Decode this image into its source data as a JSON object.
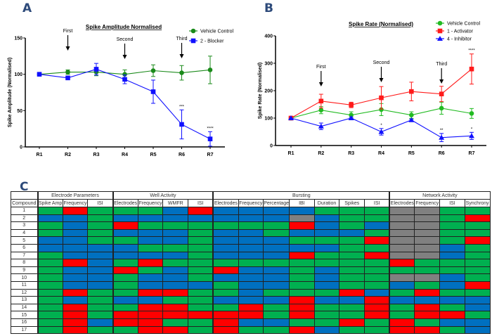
{
  "panels": {
    "a": "A",
    "b": "B",
    "c": "C"
  },
  "colors": {
    "G": "#00b050",
    "R": "#ff0000",
    "B": "#0070c0",
    "X": "#808080"
  },
  "chart_data": [
    {
      "type": "line",
      "title": "Spike Amplitude Normalised",
      "xlabel": "",
      "ylabel": "Spike Amplitude (Normalised)",
      "categories": [
        "R1",
        "R2",
        "R3",
        "R4",
        "R5",
        "R6",
        "R7"
      ],
      "ylim": [
        0,
        150
      ],
      "yticks": [
        0,
        50,
        100,
        150
      ],
      "grid": false,
      "legend": "top-right",
      "series": [
        {
          "name": "Vehicle Control",
          "color": "#1a8a1a",
          "marker": "circle",
          "values": [
            100,
            103,
            103,
            100,
            105,
            102,
            106
          ],
          "errors": [
            0,
            3,
            5,
            6,
            8,
            10,
            19
          ]
        },
        {
          "name": "2 - Blocker",
          "color": "#1010ff",
          "marker": "square",
          "values": [
            100,
            95,
            107,
            93,
            76,
            31,
            11
          ],
          "errors": [
            0,
            2,
            8,
            6,
            16,
            20,
            10
          ]
        }
      ],
      "events": [
        {
          "label": "First",
          "at": "R2"
        },
        {
          "label": "Second",
          "at": "R4"
        },
        {
          "label": "Third",
          "at": "R6"
        }
      ],
      "annotations": [
        {
          "text": "***",
          "at": "R6",
          "series": 1
        },
        {
          "text": "****",
          "at": "R7",
          "series": 1
        }
      ]
    },
    {
      "type": "line",
      "title": "Spike Rate (Normalised)",
      "xlabel": "",
      "ylabel": "Spike Rate (Normalised)",
      "categories": [
        "R1",
        "R2",
        "R3",
        "R4",
        "R5",
        "R6",
        "R7"
      ],
      "ylim": [
        0,
        400
      ],
      "yticks": [
        0,
        100,
        200,
        300,
        400
      ],
      "grid": false,
      "legend": "top-right",
      "series": [
        {
          "name": "Vehicle Control",
          "color": "#22bb22",
          "marker": "circle",
          "values": [
            100,
            129,
            111,
            131,
            111,
            136,
            117
          ],
          "errors": [
            0,
            13,
            12,
            22,
            12,
            22,
            18
          ]
        },
        {
          "name": "1 - Activator",
          "color": "#ff1a1a",
          "marker": "square",
          "values": [
            100,
            162,
            148,
            174,
            197,
            188,
            279
          ],
          "errors": [
            0,
            25,
            10,
            41,
            34,
            28,
            55
          ]
        },
        {
          "name": "4 - Inhibitor",
          "color": "#1010ff",
          "marker": "triangle",
          "values": [
            100,
            70,
            100,
            50,
            93,
            29,
            35
          ],
          "errors": [
            0,
            12,
            3,
            12,
            3,
            15,
            13
          ]
        }
      ],
      "events": [
        {
          "label": "First",
          "at": "R2"
        },
        {
          "label": "Second",
          "at": "R4"
        },
        {
          "label": "Third",
          "at": "R6"
        }
      ],
      "annotations": [
        {
          "text": "*",
          "at": "R4",
          "series": 2
        },
        {
          "text": "**",
          "at": "R6",
          "series": 2
        },
        {
          "text": "*",
          "at": "R7",
          "series": 2
        },
        {
          "text": "****",
          "at": "R7",
          "series": 1
        }
      ]
    },
    {
      "type": "heatmap",
      "groups": [
        {
          "label": "Electrode Parameters",
          "span": 3
        },
        {
          "label": "Well Activity",
          "span": 4
        },
        {
          "label": "Bursting",
          "span": 7
        },
        {
          "label": "Network Activity",
          "span": 4
        }
      ],
      "row_header": "Compound",
      "columns": [
        "Spike Amp",
        "Frequency",
        "ISI",
        "Electrodes",
        "Frequency",
        "WMFR",
        "ISI",
        "Electrodes",
        "Frequency",
        "Percentage",
        "IBI",
        "Duration",
        "Spikes",
        "ISI",
        "Electrodes",
        "Frequency",
        "ISI",
        "Synchrony"
      ],
      "rows": [
        {
          "label": "1",
          "cells": "GRGGGBRBBBBGGGXXGG"
        },
        {
          "label": "2",
          "cells": "BBGBBBBBBBXBGGXXGR"
        },
        {
          "label": "3",
          "cells": "GBGRGGGGGGRBGBXXGG"
        },
        {
          "label": "4",
          "cells": "GBGBBBGBBGBBBGXXGG"
        },
        {
          "label": "5",
          "cells": "BBGGBBGBBBGGGRXXGR"
        },
        {
          "label": "6",
          "cells": "BBBBGGGBBBBBGGXXBG"
        },
        {
          "label": "7",
          "cells": "GBBBBBGBBBRGGRXXBG"
        },
        {
          "label": "8",
          "cells": "GRBGRGGGGGGGGGRGGG"
        },
        {
          "label": "9",
          "cells": "GBBRGBGRBBGBGGGGGG"
        },
        {
          "label": "10",
          "cells": "GBBGBBGBBBGBGGXXBG"
        },
        {
          "label": "11",
          "cells": "GBBGBBBGBBGBGGBGBR"
        },
        {
          "label": "12",
          "cells": "GRGGRRGGBGGGRBGRGG"
        },
        {
          "label": "13",
          "cells": "GBGBBGGBBBRBBRBBBB"
        },
        {
          "label": "14",
          "cells": "GRGGRRGGRGRGGRGRGB"
        },
        {
          "label": "15",
          "cells": "GRGRRRRRRGRGGRGRRG"
        },
        {
          "label": "16",
          "cells": "GRBRRGGRBBGGRGRGBB"
        },
        {
          "label": "17",
          "cells": "GRGGRRGRGGRBGGRRGB"
        }
      ]
    }
  ]
}
